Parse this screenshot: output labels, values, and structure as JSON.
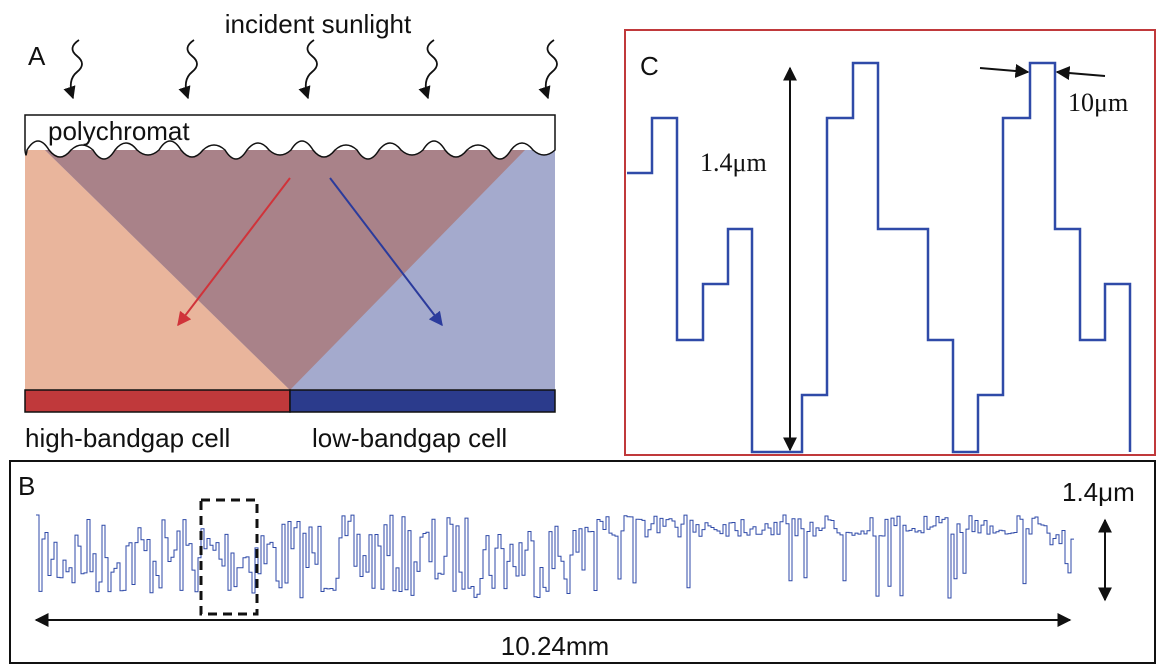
{
  "panel_a": {
    "label": "A",
    "title": "incident sunlight",
    "polychromat": "polychromat",
    "cells": [
      "high-bandgap cell",
      "low-bandgap cell"
    ]
  },
  "panel_b": {
    "label": "B",
    "height": "1.4μm",
    "width": "10.24mm"
  },
  "panel_c": {
    "label": "C",
    "height": "1.4μm",
    "pixel_width": "10μm"
  }
}
